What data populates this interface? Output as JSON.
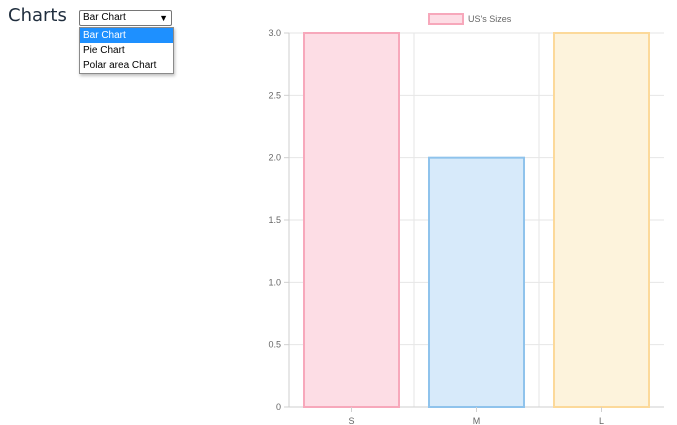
{
  "page": {
    "heading": "Charts"
  },
  "chart_selector": {
    "selected": "Bar Chart",
    "options": [
      "Bar Chart",
      "Pie Chart",
      "Polar area Chart"
    ]
  },
  "chart_data": {
    "type": "bar",
    "categories": [
      "S",
      "M",
      "L"
    ],
    "series": [
      {
        "name": "US's Sizes",
        "values": [
          3,
          2,
          3
        ]
      }
    ],
    "ylim": [
      0,
      3
    ],
    "yticks": [
      "0",
      "0.5",
      "1.0",
      "1.5",
      "2.0",
      "2.5",
      "3.0"
    ],
    "legend_position": "top",
    "grid": true,
    "bar_fill_colors": [
      "#fddde5",
      "#d7eafa",
      "#fdf3dc"
    ],
    "bar_border_colors": [
      "#f7a8bb",
      "#8fc3ec",
      "#fcd99a"
    ],
    "legend_fill": "#fddde5",
    "legend_border": "#f7a8bb"
  }
}
